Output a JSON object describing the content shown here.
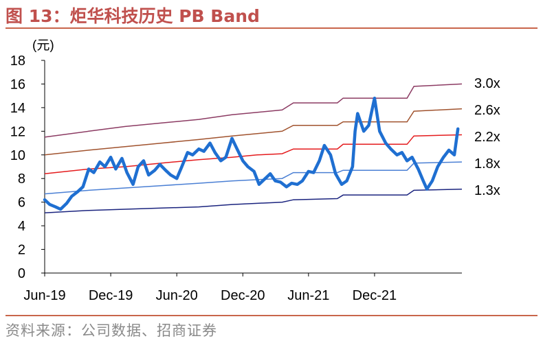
{
  "header": {
    "title": "图 13：炬华科技历史 PB Band"
  },
  "footer": {
    "source": "资料来源：公司数据、招商证券"
  },
  "chart_data": {
    "type": "line",
    "unit": "(元)",
    "ylim": [
      0,
      18
    ],
    "yticks": [
      0,
      2,
      4,
      6,
      8,
      10,
      12,
      14,
      16,
      18
    ],
    "xlim": [
      "2019-06-01",
      "2022-07-31"
    ],
    "xticks": [
      {
        "label": "Jun-19",
        "date": "2019-06-01"
      },
      {
        "label": "Dec-19",
        "date": "2019-12-01"
      },
      {
        "label": "Jun-20",
        "date": "2020-06-01"
      },
      {
        "label": "Dec-20",
        "date": "2020-12-01"
      },
      {
        "label": "Jun-21",
        "date": "2021-06-01"
      },
      {
        "label": "Dec-21",
        "date": "2021-12-01"
      }
    ],
    "grid": false,
    "band_series": [
      {
        "label": "3.0x",
        "color": "#8b3a62",
        "points": [
          [
            "2019-06-01",
            11.5
          ],
          [
            "2019-10-01",
            12.0
          ],
          [
            "2020-01-10",
            12.4
          ],
          [
            "2020-04-20",
            12.7
          ],
          [
            "2020-08-01",
            13.0
          ],
          [
            "2020-11-01",
            13.4
          ],
          [
            "2021-01-10",
            13.6
          ],
          [
            "2021-03-20",
            13.8
          ],
          [
            "2021-04-20",
            14.4
          ],
          [
            "2021-08-20",
            14.4
          ],
          [
            "2021-09-05",
            14.8
          ],
          [
            "2022-03-01",
            14.8
          ],
          [
            "2022-03-20",
            15.8
          ],
          [
            "2022-07-31",
            16.0
          ]
        ]
      },
      {
        "label": "2.6x",
        "color": "#a0522d",
        "points": [
          [
            "2019-06-01",
            10.0
          ],
          [
            "2019-10-01",
            10.4
          ],
          [
            "2020-01-10",
            10.7
          ],
          [
            "2020-04-20",
            11.0
          ],
          [
            "2020-08-01",
            11.3
          ],
          [
            "2020-11-01",
            11.6
          ],
          [
            "2021-01-10",
            11.8
          ],
          [
            "2021-03-20",
            12.0
          ],
          [
            "2021-04-20",
            12.5
          ],
          [
            "2021-08-20",
            12.5
          ],
          [
            "2021-09-05",
            12.8
          ],
          [
            "2022-03-01",
            12.8
          ],
          [
            "2022-03-20",
            13.7
          ],
          [
            "2022-07-31",
            13.9
          ]
        ]
      },
      {
        "label": "2.2x",
        "color": "#e41a1c",
        "points": [
          [
            "2019-06-01",
            8.4
          ],
          [
            "2019-10-01",
            8.8
          ],
          [
            "2020-01-10",
            9.0
          ],
          [
            "2020-04-20",
            9.3
          ],
          [
            "2020-08-01",
            9.6
          ],
          [
            "2020-11-01",
            9.8
          ],
          [
            "2021-01-10",
            10.0
          ],
          [
            "2021-03-20",
            10.1
          ],
          [
            "2021-04-20",
            10.5
          ],
          [
            "2021-08-20",
            10.5
          ],
          [
            "2021-09-05",
            10.9
          ],
          [
            "2022-03-01",
            10.9
          ],
          [
            "2022-03-20",
            11.6
          ],
          [
            "2022-07-31",
            11.7
          ]
        ]
      },
      {
        "label": "1.8x",
        "color": "#4a7fd4",
        "points": [
          [
            "2019-06-01",
            6.7
          ],
          [
            "2019-10-01",
            7.0
          ],
          [
            "2020-01-10",
            7.2
          ],
          [
            "2020-04-20",
            7.4
          ],
          [
            "2020-08-01",
            7.6
          ],
          [
            "2020-11-01",
            7.8
          ],
          [
            "2021-01-10",
            7.9
          ],
          [
            "2021-03-20",
            8.0
          ],
          [
            "2021-04-20",
            8.5
          ],
          [
            "2021-08-20",
            8.5
          ],
          [
            "2021-09-05",
            8.7
          ],
          [
            "2022-03-01",
            8.7
          ],
          [
            "2022-03-20",
            9.3
          ],
          [
            "2022-07-31",
            9.4
          ]
        ]
      },
      {
        "label": "1.3x",
        "color": "#1a237e",
        "points": [
          [
            "2019-06-01",
            5.1
          ],
          [
            "2019-10-01",
            5.3
          ],
          [
            "2020-01-10",
            5.4
          ],
          [
            "2020-04-20",
            5.5
          ],
          [
            "2020-08-01",
            5.6
          ],
          [
            "2020-11-01",
            5.8
          ],
          [
            "2021-01-10",
            5.9
          ],
          [
            "2021-03-20",
            6.0
          ],
          [
            "2021-04-20",
            6.2
          ],
          [
            "2021-08-20",
            6.3
          ],
          [
            "2021-09-05",
            6.6
          ],
          [
            "2022-03-01",
            6.6
          ],
          [
            "2022-03-20",
            7.0
          ],
          [
            "2022-07-31",
            7.1
          ]
        ]
      }
    ],
    "price_series": {
      "color": "#1f6fd1",
      "points": [
        [
          "2019-06-01",
          6.2
        ],
        [
          "2019-06-15",
          5.8
        ],
        [
          "2019-07-01",
          5.6
        ],
        [
          "2019-07-15",
          5.4
        ],
        [
          "2019-08-01",
          5.9
        ],
        [
          "2019-08-15",
          6.5
        ],
        [
          "2019-09-01",
          6.9
        ],
        [
          "2019-09-15",
          7.3
        ],
        [
          "2019-10-01",
          8.8
        ],
        [
          "2019-10-15",
          8.5
        ],
        [
          "2019-11-01",
          9.4
        ],
        [
          "2019-11-15",
          9.0
        ],
        [
          "2019-12-01",
          9.8
        ],
        [
          "2019-12-15",
          8.8
        ],
        [
          "2020-01-01",
          9.7
        ],
        [
          "2020-01-15",
          8.5
        ],
        [
          "2020-02-01",
          7.5
        ],
        [
          "2020-02-15",
          9.0
        ],
        [
          "2020-03-01",
          9.5
        ],
        [
          "2020-03-15",
          8.3
        ],
        [
          "2020-04-01",
          8.7
        ],
        [
          "2020-04-15",
          9.2
        ],
        [
          "2020-05-01",
          8.7
        ],
        [
          "2020-05-15",
          8.3
        ],
        [
          "2020-06-01",
          8.0
        ],
        [
          "2020-06-15",
          9.0
        ],
        [
          "2020-07-01",
          10.2
        ],
        [
          "2020-07-15",
          10.0
        ],
        [
          "2020-08-01",
          10.5
        ],
        [
          "2020-08-15",
          10.3
        ],
        [
          "2020-09-01",
          11.0
        ],
        [
          "2020-09-15",
          10.2
        ],
        [
          "2020-10-01",
          9.5
        ],
        [
          "2020-10-15",
          9.8
        ],
        [
          "2020-11-01",
          11.4
        ],
        [
          "2020-11-15",
          10.5
        ],
        [
          "2020-12-01",
          9.5
        ],
        [
          "2020-12-15",
          9.0
        ],
        [
          "2021-01-01",
          8.6
        ],
        [
          "2021-01-15",
          7.5
        ],
        [
          "2021-02-01",
          8.0
        ],
        [
          "2021-02-15",
          8.4
        ],
        [
          "2021-03-01",
          7.8
        ],
        [
          "2021-03-15",
          7.7
        ],
        [
          "2021-04-01",
          7.3
        ],
        [
          "2021-04-15",
          7.6
        ],
        [
          "2021-05-01",
          7.5
        ],
        [
          "2021-05-15",
          7.8
        ],
        [
          "2021-06-01",
          8.6
        ],
        [
          "2021-06-15",
          8.5
        ],
        [
          "2021-07-01",
          9.5
        ],
        [
          "2021-07-15",
          10.8
        ],
        [
          "2021-08-01",
          10.0
        ],
        [
          "2021-08-15",
          8.4
        ],
        [
          "2021-09-01",
          7.5
        ],
        [
          "2021-09-15",
          7.8
        ],
        [
          "2021-10-01",
          9.0
        ],
        [
          "2021-10-08",
          12.0
        ],
        [
          "2021-10-15",
          13.5
        ],
        [
          "2021-11-01",
          12.0
        ],
        [
          "2021-11-15",
          12.5
        ],
        [
          "2021-12-01",
          14.8
        ],
        [
          "2021-12-15",
          12.0
        ],
        [
          "2022-01-01",
          11.0
        ],
        [
          "2022-01-15",
          10.5
        ],
        [
          "2022-02-01",
          10.0
        ],
        [
          "2022-02-15",
          10.2
        ],
        [
          "2022-03-01",
          9.5
        ],
        [
          "2022-03-15",
          9.8
        ],
        [
          "2022-04-01",
          8.8
        ],
        [
          "2022-04-15",
          7.8
        ],
        [
          "2022-04-25",
          7.1
        ],
        [
          "2022-05-10",
          7.8
        ],
        [
          "2022-05-25",
          9.0
        ],
        [
          "2022-06-10",
          9.8
        ],
        [
          "2022-06-25",
          10.4
        ],
        [
          "2022-07-10",
          10.0
        ],
        [
          "2022-07-20",
          12.2
        ]
      ]
    }
  }
}
